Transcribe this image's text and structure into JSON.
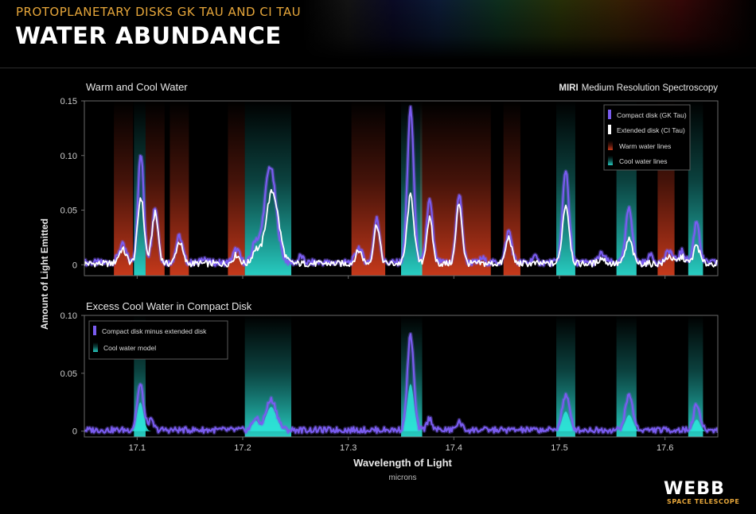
{
  "header": {
    "supertitle": "PROTOPLANETARY DISKS GK TAU AND CI TAU",
    "title": "WATER ABUNDANCE"
  },
  "logo": {
    "name": "WEBB",
    "subtitle": "SPACE TELESCOPE"
  },
  "colors": {
    "compact": "#7a5cf0",
    "extended": "#ffffff",
    "warm": "#c0351a",
    "cool": "#1fb8b0",
    "model": "#2ee8dc",
    "frame": "#6a6a6a",
    "text": "#d8d8d8",
    "title_accent": "#e6a63a"
  },
  "chart_data": [
    {
      "type": "line",
      "title": "Warm and Cool Water",
      "annotation_bold": "MIRI",
      "annotation": "Medium Resolution Spectroscopy",
      "xlabel": "Wavelength of Light",
      "xunit": "microns",
      "ylabel": "Amount of Light Emitted",
      "xlim": [
        17.05,
        17.65
      ],
      "ylim": [
        -0.01,
        0.15
      ],
      "yticks": [
        0,
        0.05,
        0.1,
        0.15
      ],
      "ytick_labels": [
        "0",
        "0.05",
        "0.10",
        "0.15"
      ],
      "xticks": [
        17.1,
        17.2,
        17.3,
        17.4,
        17.5,
        17.6
      ],
      "xtick_labels": [
        "17.1",
        "17.2",
        "17.3",
        "17.4",
        "17.5",
        "17.6"
      ],
      "grid": false,
      "legend_position": "top-right",
      "legend": [
        {
          "label": "Compact disk (GK Tau)",
          "kind": "line",
          "color": "#7a5cf0"
        },
        {
          "label": "Extended disk (CI Tau)",
          "kind": "line",
          "color": "#ffffff"
        },
        {
          "label": "Warm water lines",
          "kind": "band",
          "color": "#c0351a"
        },
        {
          "label": "Cool water lines",
          "kind": "band",
          "color": "#1fb8b0"
        }
      ],
      "warm_bands": [
        [
          17.078,
          17.096
        ],
        [
          17.108,
          17.126
        ],
        [
          17.131,
          17.149
        ],
        [
          17.186,
          17.202
        ],
        [
          17.303,
          17.335
        ],
        [
          17.368,
          17.435
        ],
        [
          17.447,
          17.463
        ],
        [
          17.593,
          17.609
        ]
      ],
      "cool_bands": [
        [
          17.097,
          17.108
        ],
        [
          17.202,
          17.246
        ],
        [
          17.35,
          17.37
        ],
        [
          17.497,
          17.515
        ],
        [
          17.554,
          17.573
        ],
        [
          17.622,
          17.636
        ]
      ],
      "series": [
        {
          "name": "Compact disk (GK Tau)",
          "color": "#7a5cf0",
          "baseline": 0.002,
          "peaks": [
            {
              "x": 17.086,
              "y": 0.016,
              "w": 0.0035
            },
            {
              "x": 17.1035,
              "y": 0.099,
              "w": 0.0028
            },
            {
              "x": 17.117,
              "y": 0.051,
              "w": 0.0028
            },
            {
              "x": 17.14,
              "y": 0.024,
              "w": 0.003
            },
            {
              "x": 17.163,
              "y": 0.005,
              "w": 0.002
            },
            {
              "x": 17.194,
              "y": 0.012,
              "w": 0.003
            },
            {
              "x": 17.212,
              "y": 0.018,
              "w": 0.003
            },
            {
              "x": 17.226,
              "y": 0.088,
              "w": 0.0055
            },
            {
              "x": 17.255,
              "y": 0.006,
              "w": 0.002
            },
            {
              "x": 17.31,
              "y": 0.014,
              "w": 0.003
            },
            {
              "x": 17.327,
              "y": 0.04,
              "w": 0.0028
            },
            {
              "x": 17.359,
              "y": 0.14,
              "w": 0.003
            },
            {
              "x": 17.377,
              "y": 0.057,
              "w": 0.0028
            },
            {
              "x": 17.405,
              "y": 0.062,
              "w": 0.0028
            },
            {
              "x": 17.427,
              "y": 0.004,
              "w": 0.002
            },
            {
              "x": 17.452,
              "y": 0.029,
              "w": 0.0028
            },
            {
              "x": 17.476,
              "y": 0.006,
              "w": 0.002
            },
            {
              "x": 17.506,
              "y": 0.085,
              "w": 0.003
            },
            {
              "x": 17.54,
              "y": 0.008,
              "w": 0.003
            },
            {
              "x": 17.566,
              "y": 0.051,
              "w": 0.003
            },
            {
              "x": 17.587,
              "y": 0.008,
              "w": 0.002
            },
            {
              "x": 17.604,
              "y": 0.011,
              "w": 0.003
            },
            {
              "x": 17.616,
              "y": 0.01,
              "w": 0.003
            },
            {
              "x": 17.63,
              "y": 0.038,
              "w": 0.0028
            }
          ]
        },
        {
          "name": "Extended disk (CI Tau)",
          "color": "#ffffff",
          "baseline": 0.001,
          "peaks": [
            {
              "x": 17.086,
              "y": 0.013,
              "w": 0.0035
            },
            {
              "x": 17.1035,
              "y": 0.061,
              "w": 0.003
            },
            {
              "x": 17.117,
              "y": 0.046,
              "w": 0.003
            },
            {
              "x": 17.14,
              "y": 0.02,
              "w": 0.003
            },
            {
              "x": 17.194,
              "y": 0.008,
              "w": 0.003
            },
            {
              "x": 17.212,
              "y": 0.012,
              "w": 0.003
            },
            {
              "x": 17.228,
              "y": 0.066,
              "w": 0.006
            },
            {
              "x": 17.31,
              "y": 0.012,
              "w": 0.003
            },
            {
              "x": 17.327,
              "y": 0.036,
              "w": 0.0028
            },
            {
              "x": 17.359,
              "y": 0.062,
              "w": 0.0032
            },
            {
              "x": 17.377,
              "y": 0.041,
              "w": 0.0028
            },
            {
              "x": 17.405,
              "y": 0.055,
              "w": 0.0028
            },
            {
              "x": 17.452,
              "y": 0.024,
              "w": 0.0028
            },
            {
              "x": 17.506,
              "y": 0.054,
              "w": 0.0032
            },
            {
              "x": 17.54,
              "y": 0.005,
              "w": 0.003
            },
            {
              "x": 17.566,
              "y": 0.022,
              "w": 0.0032
            },
            {
              "x": 17.604,
              "y": 0.007,
              "w": 0.003
            },
            {
              "x": 17.616,
              "y": 0.006,
              "w": 0.003
            },
            {
              "x": 17.63,
              "y": 0.017,
              "w": 0.0028
            }
          ]
        }
      ]
    },
    {
      "type": "area",
      "title": "Excess Cool Water in Compact Disk",
      "xlabel": "Wavelength of Light",
      "xunit": "microns",
      "ylabel": "Amount of Light Emitted",
      "xlim": [
        17.05,
        17.65
      ],
      "ylim": [
        -0.005,
        0.1
      ],
      "yticks": [
        0,
        0.05,
        0.1
      ],
      "ytick_labels": [
        "0",
        "0.05",
        "0.10"
      ],
      "xticks": [
        17.1,
        17.2,
        17.3,
        17.4,
        17.5,
        17.6
      ],
      "xtick_labels": [
        "17.1",
        "17.2",
        "17.3",
        "17.4",
        "17.5",
        "17.6"
      ],
      "grid": false,
      "legend_position": "top-left",
      "legend": [
        {
          "label": "Compact disk minus extended disk",
          "kind": "line",
          "color": "#7a5cf0"
        },
        {
          "label": "Cool water model",
          "kind": "band",
          "color": "#2ee8dc"
        }
      ],
      "cool_bands": [
        [
          17.097,
          17.108
        ],
        [
          17.202,
          17.246
        ],
        [
          17.35,
          17.37
        ],
        [
          17.497,
          17.515
        ],
        [
          17.554,
          17.573
        ],
        [
          17.622,
          17.636
        ]
      ],
      "series": [
        {
          "name": "Compact disk minus extended disk",
          "color": "#7a5cf0",
          "baseline": 0.001,
          "peaks": [
            {
              "x": 17.103,
              "y": 0.039,
              "w": 0.003
            },
            {
              "x": 17.113,
              "y": 0.008,
              "w": 0.0025
            },
            {
              "x": 17.212,
              "y": 0.01,
              "w": 0.003
            },
            {
              "x": 17.227,
              "y": 0.026,
              "w": 0.005
            },
            {
              "x": 17.359,
              "y": 0.082,
              "w": 0.003
            },
            {
              "x": 17.377,
              "y": 0.01,
              "w": 0.0025
            },
            {
              "x": 17.405,
              "y": 0.007,
              "w": 0.0025
            },
            {
              "x": 17.506,
              "y": 0.03,
              "w": 0.0035
            },
            {
              "x": 17.566,
              "y": 0.03,
              "w": 0.0035
            },
            {
              "x": 17.63,
              "y": 0.022,
              "w": 0.003
            }
          ]
        },
        {
          "name": "Cool water model",
          "color": "#2ee8dc",
          "baseline": 0.0,
          "peaks": [
            {
              "x": 17.103,
              "y": 0.025,
              "w": 0.003
            },
            {
              "x": 17.212,
              "y": 0.009,
              "w": 0.003
            },
            {
              "x": 17.227,
              "y": 0.021,
              "w": 0.005
            },
            {
              "x": 17.359,
              "y": 0.041,
              "w": 0.0032
            },
            {
              "x": 17.506,
              "y": 0.017,
              "w": 0.0035
            },
            {
              "x": 17.566,
              "y": 0.014,
              "w": 0.0035
            },
            {
              "x": 17.63,
              "y": 0.01,
              "w": 0.003
            }
          ]
        }
      ]
    }
  ]
}
